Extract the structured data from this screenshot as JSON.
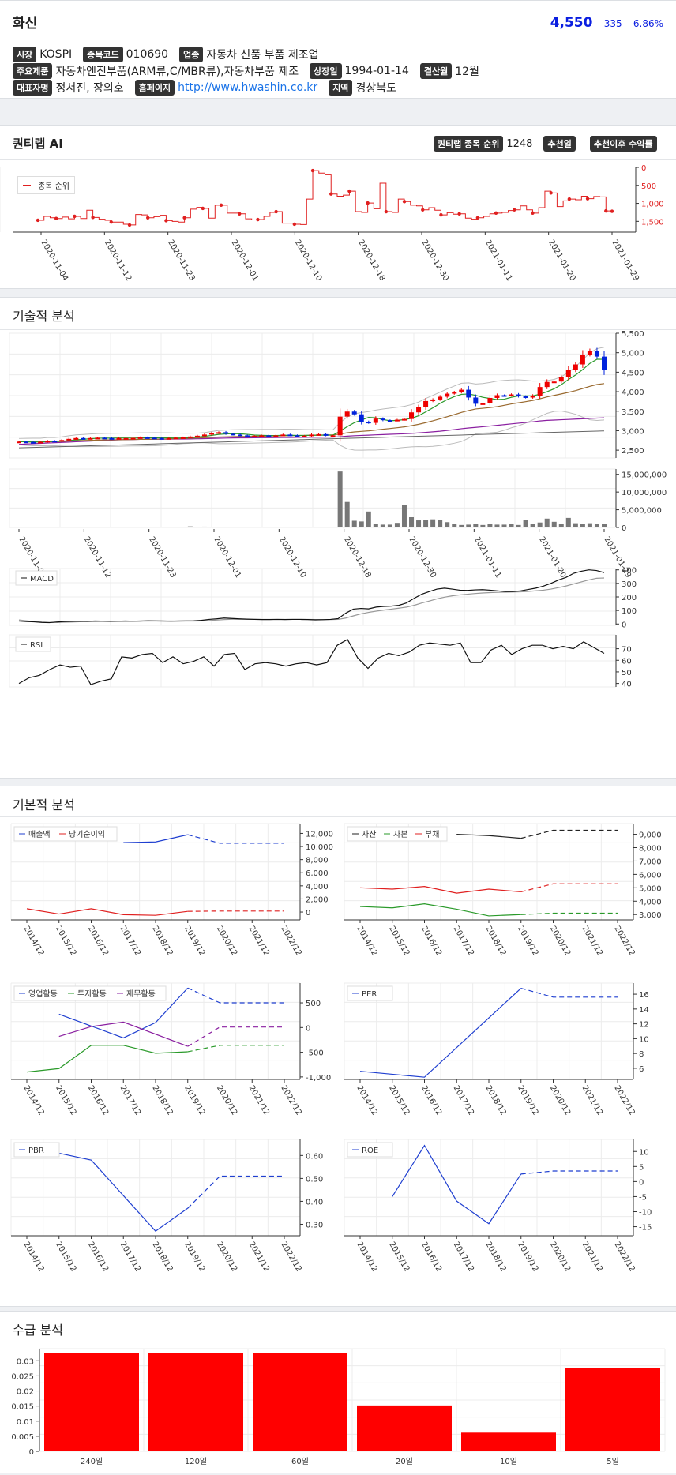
{
  "stock": {
    "name": "화신",
    "price": "4,550",
    "change": "-335",
    "change_pct": "-6.86%",
    "price_color": "#0a1ee0"
  },
  "info": {
    "market_label": "시장",
    "market": "KOSPI",
    "code_label": "종목코드",
    "code": "010690",
    "industry_label": "업종",
    "industry": "자동차 신품 부품 제조업",
    "products_label": "주요제품",
    "products": "자동차엔진부품(ARM류,C/MBR류),자동차부품 제조",
    "listed_label": "상장일",
    "listed": "1994-01-14",
    "fiscal_label": "결산월",
    "fiscal": "12월",
    "ceo_label": "대표자명",
    "ceo": "정서진, 장의호",
    "homepage_label": "홈페이지",
    "homepage": "http://www.hwashin.co.kr",
    "region_label": "지역",
    "region": "경상북도"
  },
  "quantilab": {
    "title": "퀀티랩 AI",
    "rank_label": "퀀티랩 종목 순위",
    "rank": "1248",
    "recommend_date_label": "추천일",
    "recommend_date": "",
    "return_label": "추천이후 수익률",
    "return": "–",
    "legend": "종목 순위"
  },
  "sections": {
    "technical": "기술적 분석",
    "fundamental": "기본적 분석",
    "supply": "수급 분석"
  },
  "dates": [
    "2020-11-04",
    "2020-11-12",
    "2020-11-23",
    "2020-12-01",
    "2020-12-10",
    "2020-12-18",
    "2020-12-30",
    "2021-01-11",
    "2021-01-20",
    "2021-01-29"
  ],
  "years": [
    "2014/12",
    "2015/12",
    "2016/12",
    "2017/12",
    "2018/12",
    "2019/12",
    "2020/12",
    "2021/12",
    "2022/12"
  ],
  "chart_data": [
    {
      "type": "line",
      "title": "",
      "series": [
        {
          "name": "종목 순위",
          "values": [
            1470,
            1360,
            1400,
            1420,
            1380,
            1430,
            1360,
            1420,
            1190,
            1390,
            1440,
            1470,
            1520,
            1520,
            1580,
            1600,
            1310,
            1320,
            1400,
            1370,
            1330,
            1480,
            1500,
            1520,
            1400,
            1160,
            1110,
            1140,
            1410,
            1050,
            1050,
            1270,
            1270,
            1290,
            1430,
            1460,
            1450,
            1360,
            1250,
            1230,
            1550,
            1550,
            1580,
            1590,
            880,
            90,
            160,
            190,
            740,
            800,
            770,
            660,
            1230,
            1250,
            990,
            1150,
            440,
            1230,
            1250,
            880,
            950,
            1050,
            1070,
            1180,
            1120,
            1190,
            1320,
            1260,
            1300,
            1290,
            1410,
            1440,
            1400,
            1360,
            1290,
            1270,
            1250,
            1200,
            1180,
            1070,
            1180,
            1270,
            1120,
            660,
            710,
            1090,
            930,
            880,
            900,
            800,
            870,
            810,
            820,
            1210,
            1220
          ]
        }
      ],
      "ylim": [
        1800,
        0
      ],
      "yticks": [
        "0",
        "500",
        "1,000",
        "1,500"
      ]
    },
    {
      "type": "candlestick",
      "title": "",
      "ylim": [
        2300,
        5500
      ],
      "yticks": [
        "2,500",
        "3,000",
        "3,500",
        "4,000",
        "4,500",
        "5,000",
        "5,500"
      ],
      "closes": [
        2720,
        2710,
        2700,
        2715,
        2740,
        2730,
        2760,
        2790,
        2810,
        2800,
        2810,
        2820,
        2810,
        2805,
        2810,
        2810,
        2815,
        2830,
        2820,
        2810,
        2800,
        2810,
        2820,
        2830,
        2850,
        2870,
        2900,
        2940,
        2960,
        2920,
        2900,
        2880,
        2870,
        2870,
        2880,
        2870,
        2880,
        2900,
        2880,
        2860,
        2870,
        2900,
        2910,
        2880,
        2880,
        3360,
        3490,
        3420,
        3230,
        3200,
        3310,
        3270,
        3260,
        3280,
        3300,
        3470,
        3600,
        3760,
        3800,
        3870,
        3950,
        3990,
        4050,
        3850,
        3690,
        3700,
        3840,
        3910,
        3900,
        3930,
        3880,
        3850,
        3900,
        4120,
        4250,
        4260,
        4370,
        4560,
        4700,
        4950,
        5050,
        4900,
        4550
      ],
      "volumes": [
        100000,
        120000,
        90000,
        80000,
        150000,
        110000,
        140000,
        180000,
        130000,
        120000,
        90000,
        100000,
        110000,
        130000,
        100000,
        90000,
        120000,
        140000,
        130000,
        110000,
        100000,
        120000,
        140000,
        180000,
        300000,
        200000,
        230000,
        160000,
        140000,
        120000,
        110000,
        90000,
        100000,
        110000,
        90000,
        80000,
        110000,
        120000,
        90000,
        100000,
        150000,
        130000,
        120000,
        140000,
        120000,
        15800000,
        7200000,
        1900000,
        1700000,
        4500000,
        900000,
        800000,
        800000,
        1300000,
        6400000,
        2900000,
        2000000,
        2100000,
        2300000,
        2100000,
        1500000,
        900000,
        700000,
        800000,
        900000,
        700000,
        1000000,
        800000,
        800000,
        900000,
        700000,
        2200000,
        1100000,
        1400000,
        2500000,
        1600000,
        1100000,
        2700000,
        1200000,
        1100000,
        1200000,
        1000000,
        900000
      ],
      "volume_yticks": [
        "0",
        "5,000,000",
        "10,000,000",
        "15,000,000"
      ]
    },
    {
      "type": "line",
      "series": [
        {
          "name": "MACD",
          "values": [
            22,
            18,
            16,
            12,
            10,
            15,
            18,
            20,
            21,
            20,
            22,
            21,
            20,
            21,
            22,
            21,
            22,
            24,
            23,
            22,
            21,
            22,
            23,
            24,
            27,
            34,
            38,
            44,
            41,
            38,
            36,
            34,
            33,
            33,
            34,
            33,
            34,
            34,
            33,
            31,
            32,
            34,
            40,
            80,
            110,
            115,
            112,
            125,
            130,
            132,
            138,
            156,
            190,
            220,
            240,
            258,
            265,
            258,
            250,
            248,
            252,
            254,
            250,
            245,
            240,
            240,
            245,
            255,
            265,
            280,
            300,
            325,
            345,
            375,
            390,
            400,
            395,
            380
          ]
        },
        {
          "name": "Signal",
          "values": [
            30,
            24,
            18,
            14,
            12,
            12,
            13,
            15,
            17,
            18,
            19,
            20,
            20,
            20,
            21,
            21,
            21,
            22,
            22,
            22,
            22,
            22,
            22,
            22,
            23,
            26,
            29,
            33,
            35,
            35,
            35,
            35,
            34,
            34,
            34,
            34,
            34,
            34,
            34,
            33,
            33,
            33,
            34,
            44,
            60,
            75,
            86,
            95,
            103,
            110,
            117,
            125,
            138,
            155,
            170,
            186,
            198,
            208,
            215,
            220,
            225,
            229,
            232,
            234,
            235,
            236,
            238,
            241,
            245,
            250,
            258,
            269,
            281,
            296,
            311,
            326,
            338,
            340
          ]
        }
      ],
      "yticks": [
        "0",
        "100",
        "200",
        "300",
        "400"
      ],
      "ylim": [
        -10,
        410
      ]
    },
    {
      "type": "line",
      "series": [
        {
          "name": "RSI",
          "values": [
            40,
            45,
            47,
            52,
            56,
            54,
            55,
            39,
            42,
            44,
            63,
            62,
            65,
            66,
            58,
            63,
            57,
            59,
            63,
            55,
            65,
            66,
            52,
            57,
            58,
            57,
            55,
            57,
            58,
            56,
            58,
            73,
            78,
            62,
            53,
            62,
            66,
            64,
            67,
            73,
            75,
            74,
            73,
            75,
            58,
            58,
            69,
            73,
            65,
            70,
            73,
            73,
            70,
            72,
            70,
            76,
            71,
            66
          ]
        }
      ],
      "yticks": [
        "40",
        "50",
        "60",
        "70"
      ],
      "ylim": [
        37,
        82
      ]
    }
  ],
  "fundamentals": [
    {
      "legend": [
        [
          "매출액",
          "#1f3fd0"
        ],
        [
          "당기순이익",
          "#e02020"
        ]
      ],
      "yticks": [
        "0",
        "2,000",
        "4,000",
        "6,000",
        "8,000",
        "10,000",
        "12,000"
      ],
      "ylim": [
        -1200,
        13500
      ],
      "series": [
        {
          "color": "#1f3fd0",
          "values": [
            null,
            null,
            null,
            10600,
            10700,
            11800,
            10500,
            10500,
            10500
          ]
        },
        {
          "color": "#e02020",
          "values": [
            500,
            -300,
            500,
            -400,
            -500,
            100,
            150,
            150,
            150
          ]
        }
      ]
    },
    {
      "legend": [
        [
          "자산",
          "#222222"
        ],
        [
          "자본",
          "#2a9a2a"
        ],
        [
          "부채",
          "#e02020"
        ]
      ],
      "yticks": [
        "3,000",
        "4,000",
        "5,000",
        "6,000",
        "7,000",
        "8,000",
        "9,000"
      ],
      "ylim": [
        2600,
        9800
      ],
      "series": [
        {
          "color": "#222222",
          "values": [
            null,
            null,
            null,
            9000,
            8900,
            8700,
            9300,
            9300,
            9300
          ]
        },
        {
          "color": "#2a9a2a",
          "values": [
            3600,
            3500,
            3800,
            3400,
            2900,
            3000,
            3100,
            3100,
            3100
          ]
        },
        {
          "color": "#e02020",
          "values": [
            5000,
            4900,
            5100,
            4600,
            4900,
            4700,
            5300,
            5300,
            5300
          ]
        }
      ]
    },
    {
      "legend": [
        [
          "영업활동",
          "#1f3fd0"
        ],
        [
          "투자활동",
          "#2a9a2a"
        ],
        [
          "재무활동",
          "#8a1fa0"
        ]
      ],
      "yticks": [
        "-1,000",
        "-500",
        "0",
        "500"
      ],
      "ylim": [
        -1050,
        900
      ],
      "series": [
        {
          "color": "#1f3fd0",
          "values": [
            null,
            270,
            null,
            -210,
            100,
            800,
            500,
            500,
            500
          ]
        },
        {
          "color": "#2a9a2a",
          "values": [
            -900,
            -830,
            -360,
            -360,
            -520,
            -490,
            -360,
            -360,
            -360
          ]
        },
        {
          "color": "#8a1fa0",
          "values": [
            null,
            -180,
            20,
            110,
            null,
            -380,
            10,
            10,
            10
          ]
        }
      ]
    },
    {
      "legend": [
        [
          "PER",
          "#1f3fd0"
        ]
      ],
      "yticks": [
        "6",
        "8",
        "10",
        "12",
        "14",
        "16"
      ],
      "ylim": [
        4.5,
        17.5
      ],
      "series": [
        {
          "color": "#1f3fd0",
          "values": [
            5.6,
            null,
            4.8,
            null,
            null,
            16.8,
            15.6,
            15.6,
            15.6
          ]
        }
      ]
    },
    {
      "legend": [
        [
          "PBR",
          "#1f3fd0"
        ]
      ],
      "yticks": [
        "0.30",
        "0.40",
        "0.50",
        "0.60"
      ],
      "ylim": [
        0.25,
        0.67
      ],
      "series": [
        {
          "color": "#1f3fd0",
          "values": [
            null,
            0.61,
            0.58,
            null,
            0.27,
            0.37,
            0.51,
            0.51,
            0.51
          ]
        }
      ]
    },
    {
      "legend": [
        [
          "ROE",
          "#1f3fd0"
        ]
      ],
      "yticks": [
        "-15",
        "-10",
        "-5",
        "0",
        "5",
        "10"
      ],
      "ylim": [
        -18,
        14
      ],
      "series": [
        {
          "color": "#1f3fd0",
          "values": [
            null,
            -5,
            12,
            -6.5,
            -14,
            2.5,
            3.5,
            3.5,
            3.5
          ]
        }
      ]
    }
  ],
  "supply": {
    "type": "bar",
    "categories": [
      "240일",
      "120일",
      "60일",
      "20일",
      "10일",
      "5일"
    ],
    "values": [
      0.0325,
      0.0325,
      0.0325,
      0.0152,
      0.0062,
      0.0275
    ],
    "yticks": [
      "0",
      "0.005",
      "0.01",
      "0.015",
      "0.02",
      "0.025",
      "0.03"
    ],
    "ylim": [
      0,
      0.034
    ],
    "color": "#ff0000"
  }
}
